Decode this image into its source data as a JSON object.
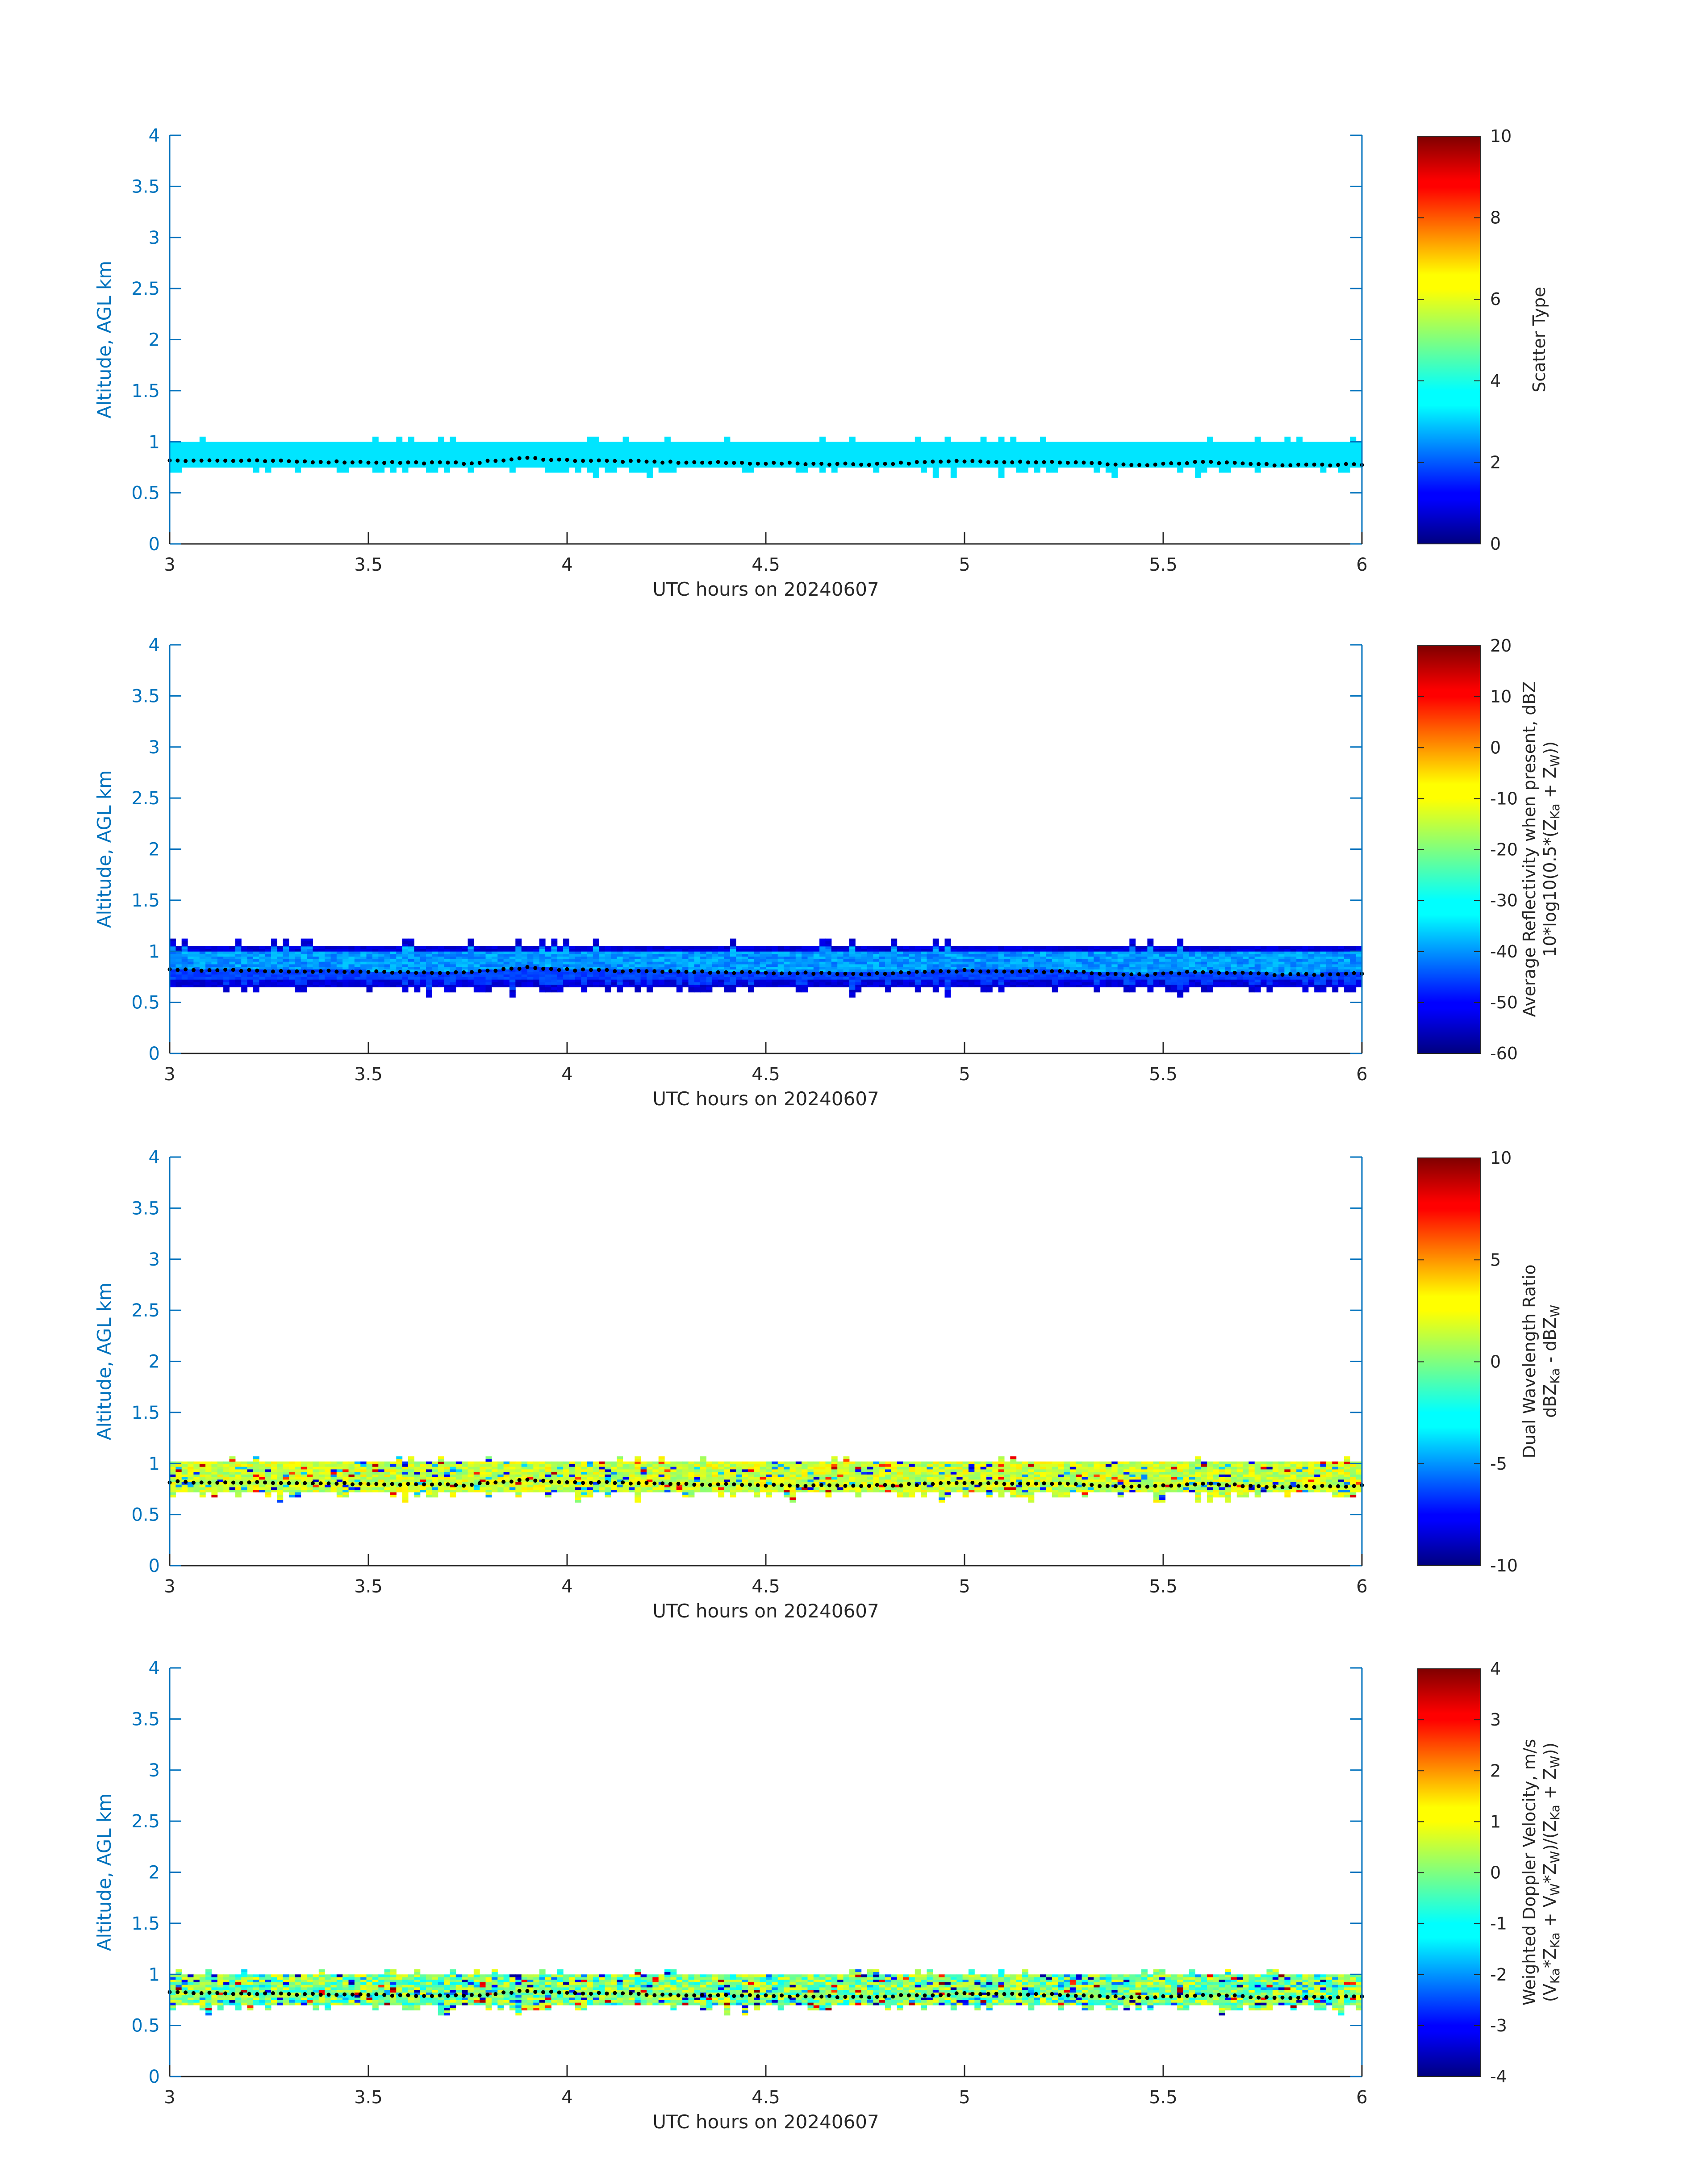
{
  "chart_data": [
    {
      "type": "heatmap",
      "panel": 1,
      "xlabel": "UTC hours on 20240607",
      "ylabel": "Altitude, AGL km",
      "xlim": [
        3,
        6
      ],
      "ylim": [
        0,
        4
      ],
      "x_ticks": [
        "3",
        "3.5",
        "4",
        "4.5",
        "5",
        "5.5",
        "6"
      ],
      "y_ticks": [
        "0",
        "0.5",
        "1",
        "1.5",
        "2",
        "2.5",
        "3",
        "3.5",
        "4"
      ],
      "colorbar": {
        "label_lines": [
          "Scatter Type"
        ],
        "clim": [
          0,
          10
        ],
        "ticks": [
          "0",
          "2",
          "4",
          "6",
          "8",
          "10"
        ],
        "colormap": "jet"
      },
      "band": {
        "field": "scatter_type",
        "bottom_km": 0.75,
        "top_km": 0.98,
        "typical_value": 3.5
      },
      "dotted_line": {
        "description": "cloud base",
        "x": [
          3.0,
          3.25,
          3.5,
          3.75,
          3.9,
          4.0,
          4.25,
          4.5,
          4.75,
          5.0,
          5.25,
          5.45,
          5.6,
          5.8,
          6.0
        ],
        "y": [
          0.82,
          0.81,
          0.8,
          0.79,
          0.84,
          0.82,
          0.8,
          0.79,
          0.78,
          0.81,
          0.8,
          0.77,
          0.8,
          0.77,
          0.78
        ]
      }
    },
    {
      "type": "heatmap",
      "panel": 2,
      "xlabel": "UTC hours on 20240607",
      "ylabel": "Altitude, AGL km",
      "xlim": [
        3,
        6
      ],
      "ylim": [
        0,
        4
      ],
      "x_ticks": [
        "3",
        "3.5",
        "4",
        "4.5",
        "5",
        "5.5",
        "6"
      ],
      "y_ticks": [
        "0",
        "0.5",
        "1",
        "1.5",
        "2",
        "2.5",
        "3",
        "3.5",
        "4"
      ],
      "colorbar": {
        "label_lines": [
          "Average Reflectivity when present, dBZ",
          "10*log10(0.5*(Z",
          "Ka",
          " + Z",
          "W",
          "))"
        ],
        "clim": [
          -60,
          20
        ],
        "ticks": [
          "-60",
          "-50",
          "-40",
          "-30",
          "-20",
          "-10",
          "0",
          "10",
          "20"
        ],
        "colormap": "jet"
      },
      "band": {
        "field": "reflectivity_dBZ",
        "bottom_km": 0.65,
        "top_km": 1.05,
        "edge_value": -55,
        "core_value": -38
      },
      "dotted_line": {
        "description": "cloud base",
        "x": [
          3.0,
          3.25,
          3.5,
          3.75,
          3.9,
          4.0,
          4.25,
          4.5,
          4.75,
          5.0,
          5.25,
          5.45,
          5.6,
          5.8,
          6.0
        ],
        "y": [
          0.82,
          0.81,
          0.8,
          0.79,
          0.84,
          0.82,
          0.8,
          0.79,
          0.78,
          0.81,
          0.8,
          0.77,
          0.8,
          0.77,
          0.78
        ]
      }
    },
    {
      "type": "heatmap",
      "panel": 3,
      "xlabel": "UTC hours on 20240607",
      "ylabel": "Altitude, AGL km",
      "xlim": [
        3,
        6
      ],
      "ylim": [
        0,
        4
      ],
      "x_ticks": [
        "3",
        "3.5",
        "4",
        "4.5",
        "5",
        "5.5",
        "6"
      ],
      "y_ticks": [
        "0",
        "0.5",
        "1",
        "1.5",
        "2",
        "2.5",
        "3",
        "3.5",
        "4"
      ],
      "colorbar": {
        "label_lines": [
          "Dual Wavelength Ratio",
          "dBZ",
          "Ka",
          " - dBZ",
          "W"
        ],
        "clim": [
          -10,
          10
        ],
        "ticks": [
          "-10",
          "-5",
          "0",
          "5",
          "10"
        ],
        "colormap": "jet"
      },
      "band": {
        "field": "dual_wavelength_ratio",
        "bottom_km": 0.72,
        "top_km": 1.0,
        "typical_value": 1.5
      },
      "dotted_line": {
        "description": "cloud base",
        "x": [
          3.0,
          3.25,
          3.5,
          3.75,
          3.9,
          4.0,
          4.25,
          4.5,
          4.75,
          5.0,
          5.25,
          5.45,
          5.6,
          5.8,
          6.0
        ],
        "y": [
          0.82,
          0.81,
          0.8,
          0.79,
          0.84,
          0.82,
          0.8,
          0.79,
          0.78,
          0.81,
          0.8,
          0.77,
          0.8,
          0.77,
          0.78
        ]
      }
    },
    {
      "type": "heatmap",
      "panel": 4,
      "xlabel": "UTC hours on 20240607",
      "ylabel": "Altitude, AGL km",
      "xlim": [
        3,
        6
      ],
      "ylim": [
        0,
        4
      ],
      "x_ticks": [
        "3",
        "3.5",
        "4",
        "4.5",
        "5",
        "5.5",
        "6"
      ],
      "y_ticks": [
        "0",
        "0.5",
        "1",
        "1.5",
        "2",
        "2.5",
        "3",
        "3.5",
        "4"
      ],
      "colorbar": {
        "label_lines": [
          "Weighted Doppler Velocity, m/s",
          "(V",
          "Ka",
          "*Z",
          "Ka",
          " + V",
          "W",
          "*Z",
          "W",
          ")/(Z",
          "Ka",
          " + Z",
          "W",
          "))"
        ],
        "clim": [
          -4,
          4
        ],
        "ticks": [
          "-4",
          "-3",
          "-2",
          "-1",
          "0",
          "1",
          "2",
          "3",
          "4"
        ],
        "colormap": "jet"
      },
      "band": {
        "field": "weighted_doppler_velocity",
        "bottom_km": 0.7,
        "top_km": 1.0,
        "typical_value": 0.0
      },
      "dotted_line": {
        "description": "cloud base",
        "x": [
          3.0,
          3.25,
          3.5,
          3.75,
          3.9,
          4.0,
          4.25,
          4.5,
          4.75,
          5.0,
          5.25,
          5.45,
          5.6,
          5.8,
          6.0
        ],
        "y": [
          0.82,
          0.81,
          0.8,
          0.79,
          0.84,
          0.82,
          0.8,
          0.79,
          0.78,
          0.81,
          0.8,
          0.77,
          0.8,
          0.77,
          0.78
        ]
      }
    }
  ]
}
